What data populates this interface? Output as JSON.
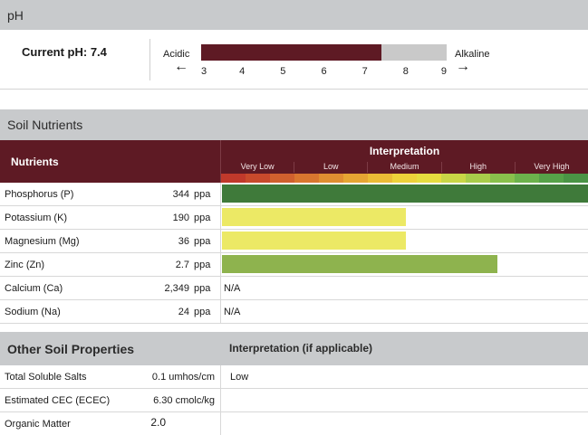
{
  "ph_section": {
    "title": "pH",
    "current_label": "Current pH: 7.4",
    "value": 7.4,
    "scale_min": 3,
    "scale_max": 9,
    "acidic_label": "Acidic",
    "alkaline_label": "Alkaline",
    "arrow_left": "←",
    "arrow_right": "→",
    "ticks": [
      "3",
      "4",
      "5",
      "6",
      "7",
      "8",
      "9"
    ],
    "colors": {
      "fill": "#5e1a24",
      "track": "#c9c9c9"
    }
  },
  "nutrients": {
    "title": "Soil Nutrients",
    "column_label": "Nutrients",
    "interpretation_label": "Interpretation",
    "levels": [
      "Very Low",
      "Low",
      "Medium",
      "High",
      "Very High"
    ],
    "gradient_colors": [
      "#c0392b",
      "#c84a2c",
      "#d0602e",
      "#d9762f",
      "#e08e31",
      "#e6a533",
      "#ebbb36",
      "#eed13a",
      "#e6dc3f",
      "#c9d646",
      "#a9cc4a",
      "#89c04c",
      "#6cb24c",
      "#56a249",
      "#4a9445"
    ],
    "rows": [
      {
        "name": "Phosphorus (P)",
        "value": "344",
        "unit": "ppa",
        "level_fraction": 1.0,
        "bar_color": "#3f7a3a",
        "na": ""
      },
      {
        "name": "Potassium (K)",
        "value": "190",
        "unit": "ppa",
        "level_fraction": 0.5,
        "bar_color": "#ece965",
        "na": ""
      },
      {
        "name": "Magnesium (Mg)",
        "value": "36",
        "unit": "ppa",
        "level_fraction": 0.5,
        "bar_color": "#ece965",
        "na": ""
      },
      {
        "name": "Zinc (Zn)",
        "value": "2.7",
        "unit": "ppa",
        "level_fraction": 0.75,
        "bar_color": "#8eb34e",
        "na": ""
      },
      {
        "name": "Calcium (Ca)",
        "value": "2,349",
        "unit": "ppa",
        "level_fraction": 0,
        "bar_color": "",
        "na": "N/A"
      },
      {
        "name": "Sodium (Na)",
        "value": "24",
        "unit": "ppa",
        "level_fraction": 0,
        "bar_color": "",
        "na": "N/A"
      }
    ]
  },
  "other": {
    "title": "Other Soil Properties",
    "interpretation_label": "Interpretation (if applicable)",
    "rows": [
      {
        "name": "Total Soluble Salts",
        "value": "0.1 umhos/cm",
        "interp": "Low"
      },
      {
        "name": "Estimated CEC (ECEC)",
        "value": "6.30 cmolc/kg",
        "interp": ""
      },
      {
        "name": "Organic Matter",
        "value": "2.0",
        "interp": ""
      }
    ]
  }
}
